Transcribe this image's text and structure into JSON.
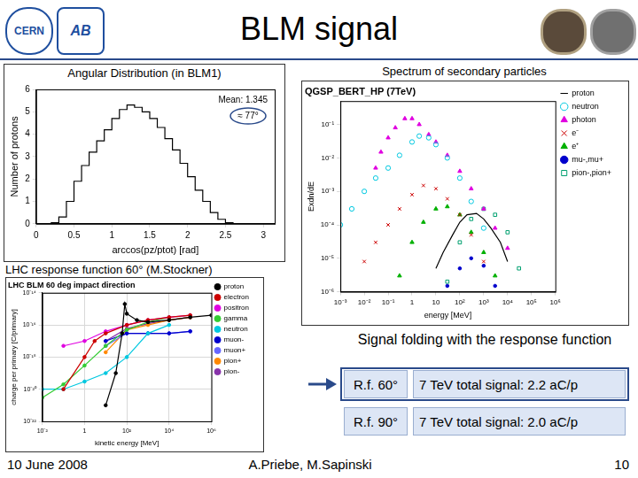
{
  "slide": {
    "title": "BLM signal",
    "logos": [
      "CERN",
      "AB"
    ],
    "signal_box": {
      "heading": "Signal folding with the response function",
      "rows": [
        [
          "R.f. 60°",
          "7 TeV total signal: 2.2 aC/p"
        ],
        [
          "R.f. 90°",
          "7 TeV total signal: 2.0 aC/p"
        ]
      ]
    },
    "footer": {
      "date": "10 June 2008",
      "authors": "A.Priebe, M.Sapinski",
      "page": 10
    }
  },
  "chart_data": [
    {
      "type": "histogram",
      "title": "Angular Distribution (in BLM1)",
      "x_label": "arccos(pz/ptot) [rad]",
      "y_label": "Number of protons",
      "annotations": [
        "Mean: 1.345",
        "≈ 77°"
      ],
      "bins": [
        0,
        0.1,
        0.2,
        0.3,
        0.4,
        0.5,
        0.6,
        0.7,
        0.8,
        0.9,
        1.0,
        1.1,
        1.2,
        1.3,
        1.4,
        1.5,
        1.6,
        1.7,
        1.8,
        1.9,
        2.0,
        2.1,
        2.2,
        2.3,
        2.4,
        2.5,
        2.6,
        2.7,
        2.8,
        2.9,
        3.0,
        3.1
      ],
      "values": [
        0,
        0,
        0.05,
        0.3,
        1.0,
        1.9,
        2.6,
        3.2,
        3.7,
        4.2,
        4.7,
        5.1,
        5.3,
        5.2,
        5.0,
        4.7,
        4.3,
        3.8,
        3.3,
        2.7,
        2.1,
        1.5,
        1.0,
        0.5,
        0.2,
        0.05,
        0,
        0,
        0,
        0,
        0
      ],
      "color": "#000000",
      "xlim": [
        0,
        3.15
      ],
      "xticks": [
        0,
        0.5,
        1,
        1.5,
        2,
        2.5,
        3
      ],
      "ylim": [
        0,
        6
      ],
      "yticks": [
        0,
        1,
        2,
        3,
        4,
        5,
        6
      ],
      "grid": false
    },
    {
      "type": "scatter",
      "title": "Spectrum of secondary particles",
      "subtitle": "QGSP_BERT_HP (7TeV)",
      "x_label": "energy [MeV]",
      "y_label": "Exdn/dE",
      "log": true,
      "grid": false,
      "legend": "right",
      "xlim": [
        0.001,
        1000000
      ],
      "xticks": [
        {
          "value": 0.001,
          "label": "10⁻³"
        },
        {
          "value": 0.01,
          "label": "10⁻²"
        },
        {
          "value": 0.1,
          "label": "10⁻¹"
        },
        1,
        10,
        {
          "value": 100,
          "label": "10²"
        },
        {
          "value": 1000,
          "label": "10³"
        },
        {
          "value": 10000,
          "label": "10⁴"
        },
        {
          "value": 100000,
          "label": "10⁵"
        },
        {
          "value": 1000000,
          "label": "10⁶"
        }
      ],
      "ylim": [
        1e-06,
        0.5
      ],
      "yticks": [
        {
          "value": 1e-06,
          "label": "10⁻⁶"
        },
        {
          "value": 1e-05,
          "label": "10⁻⁵"
        },
        {
          "value": 0.0001,
          "label": "10⁻⁴"
        },
        {
          "value": 0.001,
          "label": "10⁻³"
        },
        {
          "value": 0.01,
          "label": "10⁻²"
        },
        {
          "value": 0.1,
          "label": "10⁻¹"
        }
      ],
      "series": [
        {
          "name": "proton",
          "color": "#000000",
          "marker": "none",
          "line_style": "solid",
          "x": [
            10,
            20,
            50,
            100,
            200,
            500,
            1000,
            2000,
            5000,
            10000
          ],
          "values": [
            5e-06,
            1.5e-05,
            5e-05,
            0.00012,
            0.0002,
            0.00022,
            0.00015,
            8e-05,
            3e-05,
            8e-06
          ]
        },
        {
          "name": "neutron",
          "color": "#00c8e0",
          "marker": "open_circle",
          "line_style": "none",
          "x": [
            0.001,
            0.003,
            0.01,
            0.03,
            0.1,
            0.3,
            1,
            2,
            5,
            10,
            30,
            100,
            300,
            1000
          ],
          "values": [
            0.0001,
            0.0003,
            0.001,
            0.0025,
            0.005,
            0.012,
            0.03,
            0.045,
            0.04,
            0.025,
            0.01,
            0.0025,
            0.0005,
            8e-05
          ]
        },
        {
          "name": "photon",
          "color": "#e000e0",
          "marker": "triangle",
          "line_style": "none",
          "x": [
            0.03,
            0.05,
            0.1,
            0.2,
            0.5,
            1,
            2,
            5,
            10,
            30,
            100,
            300,
            1000,
            3000,
            10000
          ],
          "values": [
            0.005,
            0.015,
            0.04,
            0.08,
            0.15,
            0.15,
            0.1,
            0.05,
            0.03,
            0.012,
            0.004,
            0.0012,
            0.0003,
            8e-05,
            2e-05
          ]
        },
        {
          "name": "e⁻",
          "color": "#cc0000",
          "marker": "cross",
          "line_style": "none",
          "x": [
            0.01,
            0.03,
            0.1,
            0.3,
            1,
            3,
            10,
            30,
            100,
            300,
            1000
          ],
          "values": [
            8e-06,
            3e-05,
            0.0001,
            0.0003,
            0.0008,
            0.0015,
            0.0012,
            0.0006,
            0.0002,
            5e-05,
            8e-06
          ]
        },
        {
          "name": "e⁺",
          "color": "#00b000",
          "marker": "triangle",
          "line_style": "none",
          "x": [
            0.3,
            1,
            3,
            10,
            30,
            100,
            300,
            1000,
            3000
          ],
          "values": [
            3e-06,
            3e-05,
            0.00012,
            0.0003,
            0.00035,
            0.0002,
            6e-05,
            1.5e-05,
            3e-06
          ]
        },
        {
          "name": "mu-,mu+",
          "color": "#0000cc",
          "marker": "dot",
          "line_style": "none",
          "x": [
            30,
            100,
            300,
            1000,
            3000
          ],
          "values": [
            1.5e-06,
            5e-06,
            1e-05,
            6e-06,
            1.5e-06
          ]
        },
        {
          "name": "pion-,pion+",
          "color": "#00a070",
          "marker": "open_square",
          "line_style": "none",
          "x": [
            30,
            100,
            300,
            1000,
            3000,
            10000,
            30000
          ],
          "values": [
            2e-06,
            3e-05,
            0.00015,
            0.0003,
            0.0002,
            6e-05,
            5e-06
          ]
        }
      ]
    },
    {
      "type": "line",
      "title": "LHC response function 60° (M.Stockner)",
      "subtitle": "LHC BLM 60 deg impact direction",
      "x_label": "kinetic energy [MeV]",
      "y_label": "charge per primary [C/primary]",
      "log": true,
      "grid": true,
      "legend": "right",
      "xlim": [
        0.01,
        1000000
      ],
      "xticks": [
        {
          "value": 0.01,
          "label": "10⁻²"
        },
        1,
        {
          "value": 100,
          "label": "10²"
        },
        {
          "value": 10000,
          "label": "10⁴"
        },
        {
          "value": 1000000,
          "label": "10⁶"
        }
      ],
      "ylim": [
        1e-22,
        1e-14
      ],
      "yticks": [
        {
          "value": 1e-22,
          "label": "10⁻²²"
        },
        {
          "value": 1e-20,
          "label": "10⁻²⁰"
        },
        {
          "value": 1e-18,
          "label": "10⁻¹⁸"
        },
        {
          "value": 1e-16,
          "label": "10⁻¹⁶"
        },
        {
          "value": 1e-14,
          "label": "10⁻¹⁴"
        }
      ],
      "series": [
        {
          "name": "proton",
          "color": "#000000",
          "marker": "dot",
          "line_style": "solid",
          "x": [
            10,
            30,
            60,
            80,
            100,
            300,
            1000,
            10000,
            100000,
            1000000
          ],
          "values": [
            1e-21,
            1e-19,
            3e-17,
            2e-15,
            5e-16,
            2e-16,
            1.5e-16,
            2e-16,
            3e-16,
            4e-16
          ]
        },
        {
          "name": "electron",
          "color": "#cc0000",
          "marker": "dot",
          "line_style": "solid",
          "x": [
            0.1,
            1,
            3,
            10,
            100,
            1000,
            10000,
            100000
          ],
          "values": [
            1e-20,
            1e-18,
            1e-17,
            3e-17,
            1e-16,
            2e-16,
            3e-16,
            4e-16
          ]
        },
        {
          "name": "positron",
          "color": "#e000e0",
          "marker": "dot",
          "line_style": "solid",
          "x": [
            0.1,
            1,
            10,
            100,
            1000,
            10000,
            100000
          ],
          "values": [
            5e-18,
            1e-17,
            4e-17,
            1e-16,
            2e-16,
            3e-16,
            4e-16
          ]
        },
        {
          "name": "gamma",
          "color": "#33cc33",
          "marker": "dot",
          "line_style": "solid",
          "x": [
            0.01,
            0.1,
            1,
            10,
            100,
            1000,
            10000
          ],
          "values": [
            3e-21,
            2e-20,
            3e-19,
            5e-18,
            5e-17,
            1.5e-16,
            3e-16
          ]
        },
        {
          "name": "neutron",
          "color": "#00c8e0",
          "marker": "dot",
          "line_style": "solid",
          "x": [
            0.01,
            0.1,
            1,
            10,
            100,
            1000,
            10000
          ],
          "values": [
            1e-20,
            1e-20,
            3e-20,
            1e-19,
            1e-18,
            3e-17,
            1e-16
          ]
        },
        {
          "name": "muon-",
          "color": "#0000cc",
          "marker": "dot",
          "line_style": "solid",
          "x": [
            10,
            100,
            1000,
            10000,
            100000
          ],
          "values": [
            1e-17,
            3e-17,
            3e-17,
            3e-17,
            4e-17
          ]
        },
        {
          "name": "muon+",
          "color": "#6666ff",
          "marker": "dot",
          "line_style": "solid",
          "x": [
            10,
            100,
            1000,
            10000,
            100000
          ],
          "values": [
            5e-18,
            3e-17,
            3e-17,
            3e-17,
            4e-17
          ]
        },
        {
          "name": "pion+",
          "color": "#ff8800",
          "marker": "dot",
          "line_style": "solid",
          "x": [
            10,
            100,
            1000,
            10000,
            100000
          ],
          "values": [
            2e-18,
            5e-17,
            1e-16,
            2e-16,
            3e-16
          ]
        },
        {
          "name": "pion-",
          "color": "#8833aa",
          "marker": "dot",
          "line_style": "solid",
          "x": [
            10,
            100,
            1000,
            10000,
            100000
          ],
          "values": [
            1e-17,
            6e-17,
            1.2e-16,
            2e-16,
            3e-16
          ]
        }
      ]
    }
  ]
}
